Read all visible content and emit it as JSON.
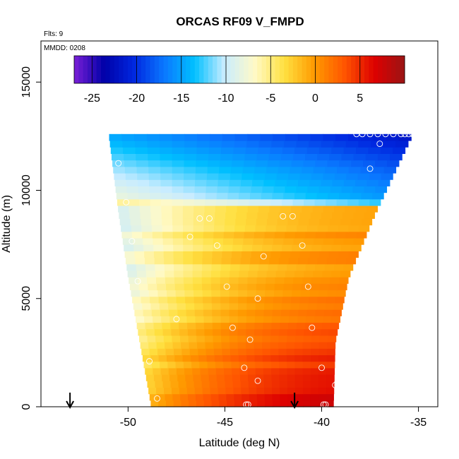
{
  "chart_data": {
    "type": "heatmap",
    "title": "ORCAS RF09 V_FMPD",
    "flights_label": "Flts: 9",
    "date_label": "MMDD: 0208",
    "xlabel": "Latitude (deg N)",
    "ylabel": "Altitude (m)",
    "xlim": [
      -54.5,
      -34.0
    ],
    "ylim": [
      0,
      16900
    ],
    "xticks": [
      -50,
      -45,
      -40,
      -35
    ],
    "xtick_labels": [
      "-50",
      "-45",
      "-40",
      "-35"
    ],
    "yticks": [
      0,
      5000,
      10000,
      15000
    ],
    "ytick_labels": [
      "0",
      "5000",
      "10000",
      "15000"
    ],
    "colorbar": {
      "range": [
        -27,
        10
      ],
      "ticks": [
        -25,
        -20,
        -15,
        -10,
        -5,
        0,
        5
      ],
      "tick_labels": [
        "-25",
        "-20",
        "-15",
        "-10",
        "-5",
        "0",
        "5"
      ],
      "colors": [
        "#7a1fd6",
        "#0000a8",
        "#0028e0",
        "#0a78ff",
        "#00c0ff",
        "#c8ecff",
        "#fffac8",
        "#ffe040",
        "#ff9a00",
        "#ff5500",
        "#dd0000",
        "#9a1515"
      ]
    },
    "field_profiles": [
      {
        "alt": 300,
        "value": 5.5
      },
      {
        "alt": 2000,
        "value": 3.0
      },
      {
        "alt": 4000,
        "value": 0.5
      },
      {
        "alt": 6000,
        "value": -1.5
      },
      {
        "alt": 8000,
        "value": -2.0
      },
      {
        "alt": 9200,
        "value": -3.0
      },
      {
        "alt": 9600,
        "value": -9.0
      },
      {
        "alt": 11000,
        "value": -12.0
      },
      {
        "alt": 12600,
        "value": -16.0
      }
    ],
    "domain_edges": {
      "alt": [
        0,
        3000,
        6000,
        9000,
        12600
      ],
      "left_lat": [
        -48.8,
        -49.4,
        -50.0,
        -50.5,
        -51.0
      ],
      "right_lat": [
        -39.4,
        -39.3,
        -38.6,
        -37.2,
        -35.3
      ]
    },
    "observations": [
      {
        "lat": -38.2,
        "alt": 12600
      },
      {
        "lat": -37.9,
        "alt": 12600
      },
      {
        "lat": -37.5,
        "alt": 12600
      },
      {
        "lat": -37.1,
        "alt": 12600
      },
      {
        "lat": -36.7,
        "alt": 12600
      },
      {
        "lat": -36.3,
        "alt": 12600
      },
      {
        "lat": -35.9,
        "alt": 12600
      },
      {
        "lat": -35.7,
        "alt": 12600
      },
      {
        "lat": -35.5,
        "alt": 12600
      },
      {
        "lat": -35.3,
        "alt": 12600
      },
      {
        "lat": -35.1,
        "alt": 12600
      },
      {
        "lat": -37.0,
        "alt": 12150
      },
      {
        "lat": -50.5,
        "alt": 11250
      },
      {
        "lat": -37.5,
        "alt": 11000
      },
      {
        "lat": -50.1,
        "alt": 9450
      },
      {
        "lat": -42.0,
        "alt": 8800
      },
      {
        "lat": -41.5,
        "alt": 8800
      },
      {
        "lat": -46.3,
        "alt": 8700
      },
      {
        "lat": -45.8,
        "alt": 8700
      },
      {
        "lat": -46.8,
        "alt": 7850
      },
      {
        "lat": -49.8,
        "alt": 7650
      },
      {
        "lat": -45.4,
        "alt": 7450
      },
      {
        "lat": -41.0,
        "alt": 7450
      },
      {
        "lat": -43.0,
        "alt": 6950
      },
      {
        "lat": -37.9,
        "alt": 6700
      },
      {
        "lat": -49.5,
        "alt": 5800
      },
      {
        "lat": -44.9,
        "alt": 5550
      },
      {
        "lat": -40.7,
        "alt": 5550
      },
      {
        "lat": -43.3,
        "alt": 5000
      },
      {
        "lat": -38.4,
        "alt": 4800
      },
      {
        "lat": -47.5,
        "alt": 4050
      },
      {
        "lat": -44.6,
        "alt": 3650
      },
      {
        "lat": -40.5,
        "alt": 3650
      },
      {
        "lat": -43.7,
        "alt": 3100
      },
      {
        "lat": -38.7,
        "alt": 2900
      },
      {
        "lat": -48.9,
        "alt": 2100
      },
      {
        "lat": -44.0,
        "alt": 1800
      },
      {
        "lat": -40.0,
        "alt": 1800
      },
      {
        "lat": -43.3,
        "alt": 1200
      },
      {
        "lat": -39.3,
        "alt": 1000
      },
      {
        "lat": -48.5,
        "alt": 380
      },
      {
        "lat": -43.9,
        "alt": 100
      },
      {
        "lat": -43.8,
        "alt": 100
      },
      {
        "lat": -39.9,
        "alt": 100
      },
      {
        "lat": -39.8,
        "alt": 100
      }
    ],
    "arrows": [
      {
        "lat": -53.0
      },
      {
        "lat": -41.4
      }
    ]
  }
}
